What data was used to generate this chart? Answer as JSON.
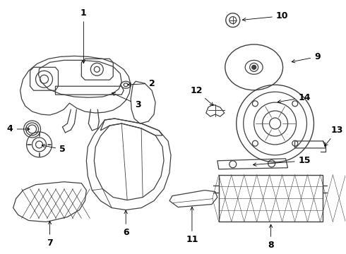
{
  "background_color": "#ffffff",
  "line_color": "#404040",
  "label_fontsize": 9,
  "figsize": [
    4.9,
    3.6
  ],
  "dpi": 100
}
